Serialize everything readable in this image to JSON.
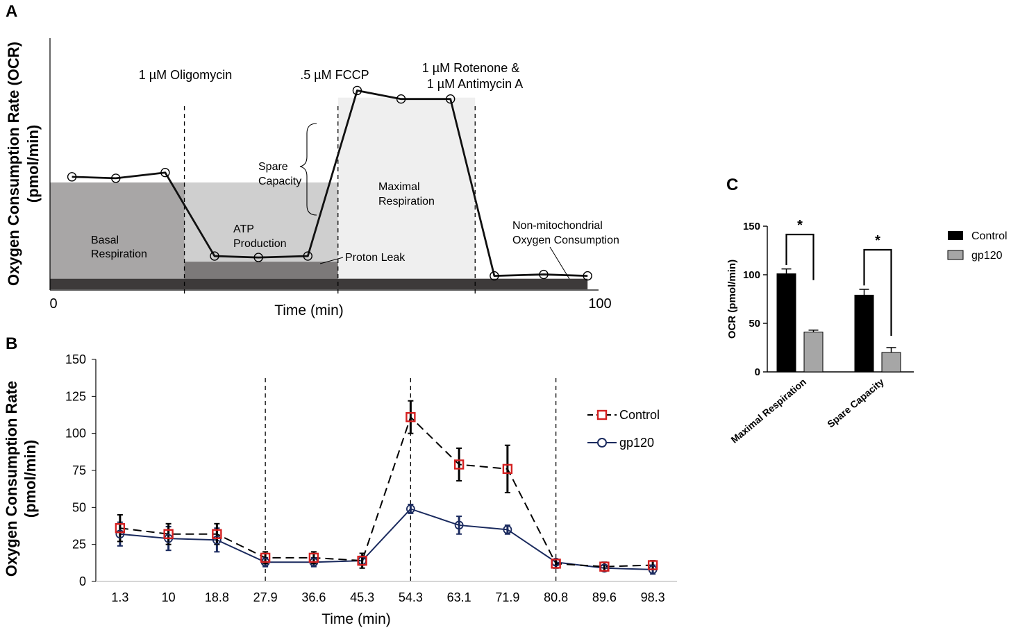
{
  "panels": {
    "a": "A",
    "b": "B",
    "c": "C"
  },
  "chart_data": [
    {
      "panel": "A",
      "type": "line",
      "ylabel_line1": "Oxygen Consumption Rate (OCR)",
      "ylabel_line2": "(pmol/min)",
      "xlabel": "Time (min)",
      "x_tick_labels": [
        "0",
        "100"
      ],
      "x": [
        4,
        12,
        21,
        30,
        38,
        47,
        56,
        64,
        73,
        81,
        90,
        98
      ],
      "values": [
        72,
        71,
        75,
        16,
        15,
        16,
        133,
        127,
        127,
        2,
        3,
        2
      ],
      "ylim": [
        -8,
        170
      ],
      "xlim": [
        0,
        100
      ],
      "injection_times": [
        24.5,
        52.5,
        77.5
      ],
      "injections": [
        "1 µM Oligomycin",
        ".5 µM FCCP",
        "1 µM Rotenone &",
        "1 µM Antimycin A"
      ],
      "levels": {
        "basal": 68,
        "proton_leak": 12,
        "maximal": 128
      },
      "regions": [
        {
          "line1": "Basal",
          "line2": "Respiration"
        },
        {
          "line1": "ATP",
          "line2": "Production"
        },
        {
          "line1": "Maximal",
          "line2": "Respiration"
        }
      ],
      "spare_capacity": {
        "line1": "Spare",
        "line2": "Capacity"
      },
      "proton_leak": "Proton Leak",
      "non_mito": {
        "line1": "Non-mitochondrial",
        "line2": "Oxygen Consumption"
      },
      "colors": {
        "basal": "#a8a6a6",
        "atp": "#cfcfcf",
        "proton": "#7c7979",
        "maximal": "#efefef",
        "non_mito": "#3d3a3a",
        "line": "#111111"
      }
    },
    {
      "panel": "B",
      "type": "line",
      "ylabel_line1": "Oxygen Consumption Rate",
      "ylabel_line2": "(pmol/min)",
      "xlabel": "Time (min)",
      "categories": [
        "1.3",
        "10",
        "18.8",
        "27.9",
        "36.6",
        "45.3",
        "54.3",
        "63.1",
        "71.9",
        "80.8",
        "89.6",
        "98.3"
      ],
      "y_ticks": [
        "0",
        "25",
        "50",
        "75",
        "100",
        "125",
        "150"
      ],
      "ylim": [
        0,
        150
      ],
      "injection_positions": [
        3.5,
        6.5,
        9.5
      ],
      "series": [
        {
          "name": "Control",
          "color": "#d42020",
          "line_color": "#000000",
          "values": [
            36,
            32,
            32,
            16,
            16,
            14,
            111,
            79,
            76,
            12,
            10,
            11
          ],
          "errors": [
            9,
            7,
            7,
            4,
            4,
            5,
            11,
            11,
            16,
            3,
            3,
            3
          ]
        },
        {
          "name": "gp120",
          "color": "#1a2a5e",
          "line_color": "#1a2a5e",
          "values": [
            32,
            29,
            28,
            13,
            13,
            14,
            49,
            38,
            35,
            13,
            9,
            8
          ],
          "errors": [
            8,
            8,
            8,
            3,
            3,
            3,
            3,
            6,
            3,
            2,
            2,
            3
          ]
        }
      ]
    },
    {
      "panel": "C",
      "type": "bar",
      "ylabel": "OCR (pmol/min)",
      "categories": [
        "Maximal Respiration",
        "Spare Capacity"
      ],
      "y_ticks": [
        "0",
        "50",
        "100",
        "150"
      ],
      "ylim": [
        0,
        150
      ],
      "significance": [
        "*",
        "*"
      ],
      "series": [
        {
          "name": "Control",
          "color": "#000000",
          "values": [
            101,
            79
          ],
          "errors": [
            5,
            6
          ]
        },
        {
          "name": "gp120",
          "color": "#a6a6a6",
          "values": [
            41,
            20
          ],
          "errors": [
            2,
            5
          ]
        }
      ]
    }
  ]
}
